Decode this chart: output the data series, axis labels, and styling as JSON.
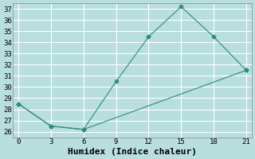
{
  "line1_x": [
    0,
    3,
    6,
    9,
    12,
    15,
    18,
    21
  ],
  "line1_y": [
    28.5,
    26.5,
    26.2,
    30.5,
    34.5,
    37.2,
    34.5,
    31.5
  ],
  "line2_x": [
    0,
    3,
    6,
    21
  ],
  "line2_y": [
    28.5,
    26.5,
    26.2,
    31.5
  ],
  "color": "#2e8b7a",
  "bg_color": "#b8dede",
  "grid_color": "#d0ecec",
  "xlabel": "Humidex (Indice chaleur)",
  "xlim": [
    -0.5,
    21.5
  ],
  "ylim": [
    25.5,
    37.5
  ],
  "xticks": [
    0,
    3,
    6,
    9,
    12,
    15,
    18,
    21
  ],
  "yticks": [
    26,
    27,
    28,
    29,
    30,
    31,
    32,
    33,
    34,
    35,
    36,
    37
  ],
  "marker": "D",
  "markersize": 2.5,
  "linewidth": 0.8,
  "font_family": "monospace",
  "xlabel_fontsize": 8,
  "tick_fontsize": 6.5
}
